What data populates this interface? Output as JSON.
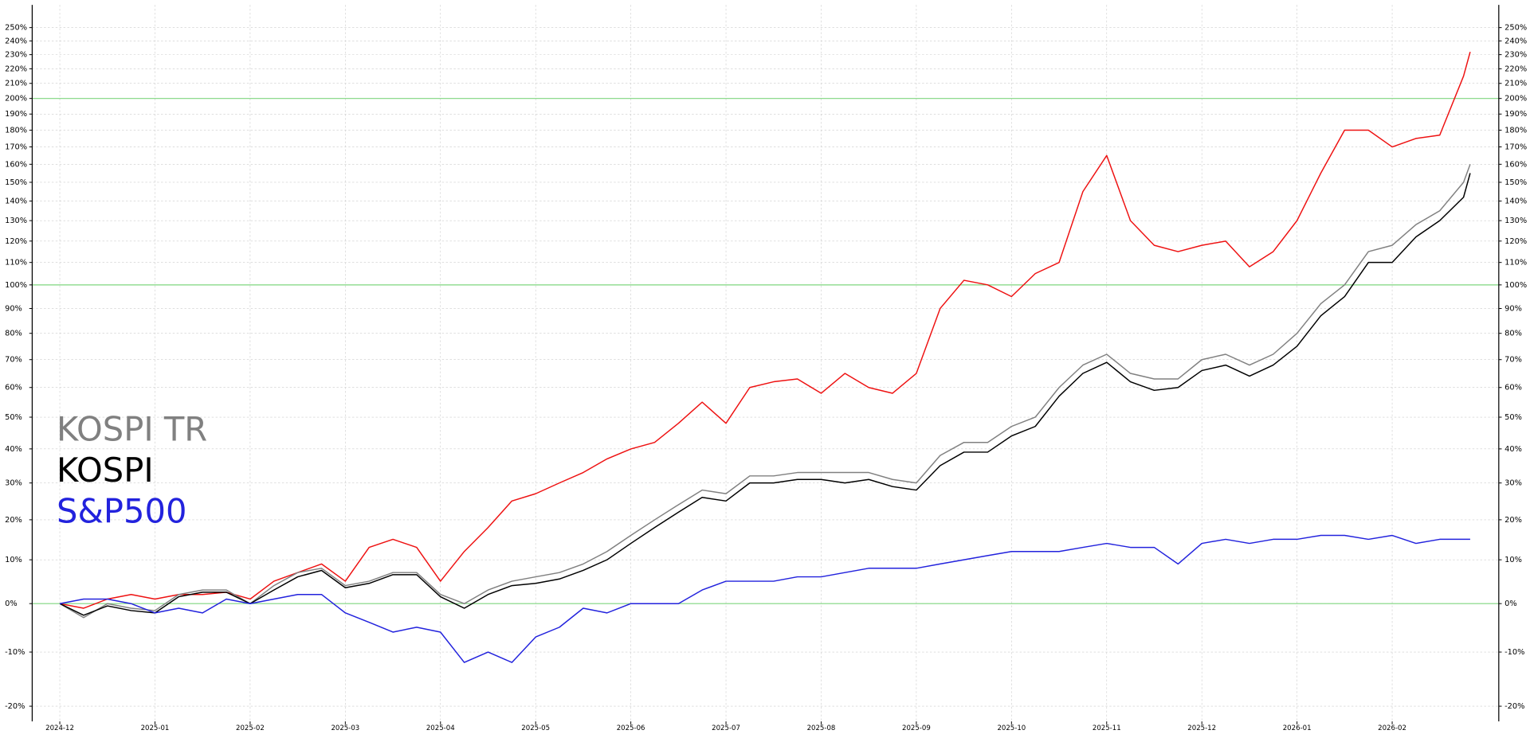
{
  "chart_data": {
    "type": "line",
    "x": [
      0,
      0.25,
      0.5,
      0.75,
      1,
      1.25,
      1.5,
      1.75,
      2,
      2.25,
      2.5,
      2.75,
      3,
      3.25,
      3.5,
      3.75,
      4,
      4.25,
      4.5,
      4.75,
      5,
      5.25,
      5.5,
      5.75,
      6,
      6.25,
      6.5,
      6.75,
      7,
      7.25,
      7.5,
      7.75,
      8,
      8.25,
      8.5,
      8.75,
      9,
      9.25,
      9.5,
      9.75,
      10,
      10.25,
      10.5,
      10.75,
      11,
      11.25,
      11.5,
      11.75,
      12,
      12.25,
      12.5,
      12.75,
      13,
      13.25,
      13.5,
      13.75,
      14,
      14.25,
      14.5,
      14.75,
      14.82
    ],
    "series": [
      {
        "color": "#ee1111",
        "values": [
          0,
          -1,
          1,
          2,
          1,
          2,
          2,
          2.5,
          1,
          5,
          7,
          9,
          5,
          13,
          15,
          13,
          5,
          12,
          18,
          25,
          27,
          30,
          33,
          37,
          40,
          42,
          48,
          55,
          48,
          60,
          62,
          63,
          58,
          65,
          60,
          58,
          65,
          90,
          102,
          100,
          95,
          105,
          110,
          145,
          165,
          130,
          118,
          115,
          118,
          120,
          108,
          115,
          130,
          155,
          180,
          180,
          170,
          175,
          177,
          215,
          232
        ]
      },
      {
        "name": "KOSPI TR",
        "color": "#808080",
        "values": [
          0,
          -3,
          0,
          -1,
          -1.5,
          2,
          3,
          3,
          0,
          4,
          7,
          8,
          4,
          5,
          7,
          7,
          2,
          0,
          3,
          5,
          6,
          7,
          9,
          12,
          16,
          20,
          24,
          28,
          27,
          32,
          32,
          33,
          33,
          33,
          33,
          31,
          30,
          38,
          42,
          42,
          47,
          50,
          60,
          68,
          72,
          65,
          63,
          63,
          70,
          72,
          68,
          72,
          80,
          92,
          100,
          115,
          118,
          128,
          135,
          150,
          160
        ]
      },
      {
        "name": "KOSPI",
        "color": "#000000",
        "values": [
          0,
          -2.5,
          -0.5,
          -1.5,
          -2,
          1.5,
          2.5,
          2.5,
          0,
          3,
          6,
          7.5,
          3.5,
          4.5,
          6.5,
          6.5,
          1.5,
          -1,
          2,
          4,
          4.5,
          5.5,
          7.5,
          10,
          14,
          18,
          22,
          26,
          25,
          30,
          30,
          31,
          31,
          30,
          31,
          29,
          28,
          35,
          39,
          39,
          44,
          47,
          57,
          65,
          69,
          62,
          59,
          60,
          66,
          68,
          64,
          68,
          75,
          87,
          95,
          110,
          110,
          122,
          130,
          142,
          155
        ]
      },
      {
        "name": "S&P500",
        "color": "#2222dd",
        "values": [
          0,
          1,
          1,
          0,
          -2,
          -1,
          -2,
          1,
          0,
          1,
          2,
          2,
          -2,
          -4,
          -6,
          -5,
          -6,
          -12,
          -10,
          -12,
          -7,
          -5,
          -1,
          -2,
          0,
          0,
          0,
          3,
          5,
          5,
          5,
          6,
          6,
          7,
          8,
          8,
          8,
          9,
          10,
          11,
          12,
          12,
          12,
          13,
          14,
          13,
          13,
          9,
          14,
          15,
          14,
          15,
          15,
          16,
          16,
          15,
          16,
          14,
          15,
          15,
          15
        ]
      }
    ],
    "xlim": [
      -0.29,
      15.12
    ],
    "xticks": [
      {
        "value": 0,
        "label": "2024-12"
      },
      {
        "value": 1,
        "label": "2025-01"
      },
      {
        "value": 2,
        "label": "2025-02"
      },
      {
        "value": 3,
        "label": "2025-03"
      },
      {
        "value": 4,
        "label": "2025-04"
      },
      {
        "value": 5,
        "label": "2025-05"
      },
      {
        "value": 6,
        "label": "2025-06"
      },
      {
        "value": 7,
        "label": "2025-07"
      },
      {
        "value": 8,
        "label": "2025-08"
      },
      {
        "value": 9,
        "label": "2025-09"
      },
      {
        "value": 10,
        "label": "2025-10"
      },
      {
        "value": 11,
        "label": "2025-11"
      },
      {
        "value": 12,
        "label": "2025-12"
      },
      {
        "value": 13,
        "label": "2026-01"
      },
      {
        "value": 14,
        "label": "2026-02"
      }
    ],
    "ylim": [
      -22.6,
      267.7
    ],
    "yscale": "log1p",
    "yticks": [
      {
        "value": -20,
        "label": "-20%"
      },
      {
        "value": -10,
        "label": "-10%"
      },
      {
        "value": 0,
        "label": "0%"
      },
      {
        "value": 10,
        "label": "10%"
      },
      {
        "value": 20,
        "label": "20%"
      },
      {
        "value": 30,
        "label": "30%"
      },
      {
        "value": 40,
        "label": "40%"
      },
      {
        "value": 50,
        "label": "50%"
      },
      {
        "value": 60,
        "label": "60%"
      },
      {
        "value": 70,
        "label": "70%"
      },
      {
        "value": 80,
        "label": "80%"
      },
      {
        "value": 90,
        "label": "90%"
      },
      {
        "value": 100,
        "label": "100%"
      },
      {
        "value": 110,
        "label": "110%"
      },
      {
        "value": 120,
        "label": "120%"
      },
      {
        "value": 130,
        "label": "130%"
      },
      {
        "value": 140,
        "label": "140%"
      },
      {
        "value": 150,
        "label": "150%"
      },
      {
        "value": 160,
        "label": "160%"
      },
      {
        "value": 170,
        "label": "170%"
      },
      {
        "value": 180,
        "label": "180%"
      },
      {
        "value": 190,
        "label": "190%"
      },
      {
        "value": 200,
        "label": "200%"
      },
      {
        "value": 210,
        "label": "210%"
      },
      {
        "value": 220,
        "label": "220%"
      },
      {
        "value": 230,
        "label": "230%"
      },
      {
        "value": 240,
        "label": "240%"
      },
      {
        "value": 250,
        "label": "250%"
      }
    ],
    "reference_lines": [
      0,
      100,
      200
    ],
    "reference_color": "#7fd67f",
    "grid": true,
    "legend": "center-left"
  }
}
